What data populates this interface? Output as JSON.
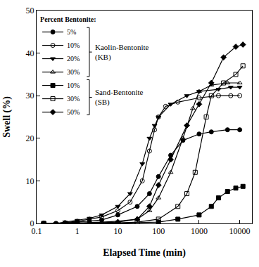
{
  "chart_data": {
    "type": "line",
    "x_label": "Elapsed Time (min)",
    "y_label": "Swell (%)",
    "log": "x",
    "xlim": [
      0.1,
      20000
    ],
    "xticks": [
      0.1,
      1,
      10,
      100,
      1000,
      10000
    ],
    "ylim": [
      0,
      50
    ],
    "yticks": [
      0,
      10,
      20,
      30,
      40,
      50
    ],
    "grid": false,
    "legend": "top left",
    "legend_title": "Percent Bentonite:",
    "annotations": [
      {
        "text": "Kaolin-Bentonite (KB)",
        "series": [
          0,
          1,
          2,
          3
        ]
      },
      {
        "text": "Sand-Bentonite (SB)",
        "series": [
          4,
          5,
          6
        ]
      }
    ],
    "series": [
      {
        "name": "5%",
        "color": "#000000",
        "marker": "circle",
        "x": [
          0.15,
          0.3,
          0.5,
          1,
          2,
          4,
          10,
          30,
          60,
          100,
          200,
          400,
          1000,
          2000,
          5000,
          10000
        ],
        "values": [
          0,
          0,
          0.1,
          0.3,
          0.5,
          0.8,
          2,
          4,
          7,
          11,
          16,
          19.5,
          21,
          21.5,
          22,
          22
        ]
      },
      {
        "name": "10%",
        "color": "#000000",
        "marker": "circle-open",
        "x": [
          0.15,
          0.3,
          0.5,
          1,
          2,
          4,
          10,
          20,
          40,
          60,
          80,
          100,
          150,
          300,
          1000,
          3000,
          6000,
          10000
        ],
        "values": [
          0,
          0,
          0.2,
          0.5,
          1,
          1.5,
          3,
          5,
          10,
          17,
          22,
          25,
          27.5,
          28.5,
          29.5,
          30,
          30,
          30
        ]
      },
      {
        "name": "20%",
        "color": "#000000",
        "marker": "triangle-down",
        "x": [
          0.15,
          0.3,
          0.5,
          1,
          2,
          4,
          10,
          20,
          40,
          60,
          80,
          100,
          200,
          500,
          1000,
          3000,
          6000,
          10000
        ],
        "values": [
          0,
          0,
          0.3,
          0.7,
          1.2,
          2,
          4,
          7,
          14,
          20,
          23,
          25,
          28,
          30,
          31,
          31.5,
          32,
          32
        ]
      },
      {
        "name": "30%",
        "color": "#000000",
        "marker": "triangle-up-open",
        "x": [
          0.15,
          0.5,
          1,
          4,
          10,
          30,
          60,
          100,
          200,
          400,
          700,
          1000,
          2000,
          5000,
          10000
        ],
        "values": [
          0,
          0,
          0.1,
          0.3,
          0.5,
          1,
          3,
          6,
          12,
          20,
          27,
          31,
          32.5,
          33,
          33
        ]
      },
      {
        "name": "10%",
        "color": "#000000",
        "marker": "square",
        "x": [
          0.15,
          1,
          10,
          100,
          300,
          1000,
          2000,
          3000,
          5000,
          8000,
          12000
        ],
        "values": [
          0,
          0,
          0.1,
          0.3,
          1,
          2,
          4,
          6,
          7.5,
          8.3,
          8.7
        ]
      },
      {
        "name": "30%",
        "color": "#000000",
        "marker": "square-open",
        "x": [
          0.15,
          1,
          10,
          30,
          100,
          300,
          500,
          800,
          1500,
          2000,
          4000,
          8000,
          12000
        ],
        "values": [
          0,
          0,
          0.1,
          0.3,
          1,
          4,
          7,
          12,
          25,
          30,
          33,
          35,
          37
        ]
      },
      {
        "name": "50%",
        "color": "#000000",
        "marker": "diamond",
        "x": [
          0.15,
          1,
          10,
          30,
          60,
          100,
          200,
          500,
          1000,
          2000,
          4000,
          8000,
          12000
        ],
        "values": [
          0,
          0,
          0.3,
          1,
          4,
          9,
          15,
          23,
          28,
          33,
          39,
          41.5,
          42
        ]
      }
    ]
  }
}
